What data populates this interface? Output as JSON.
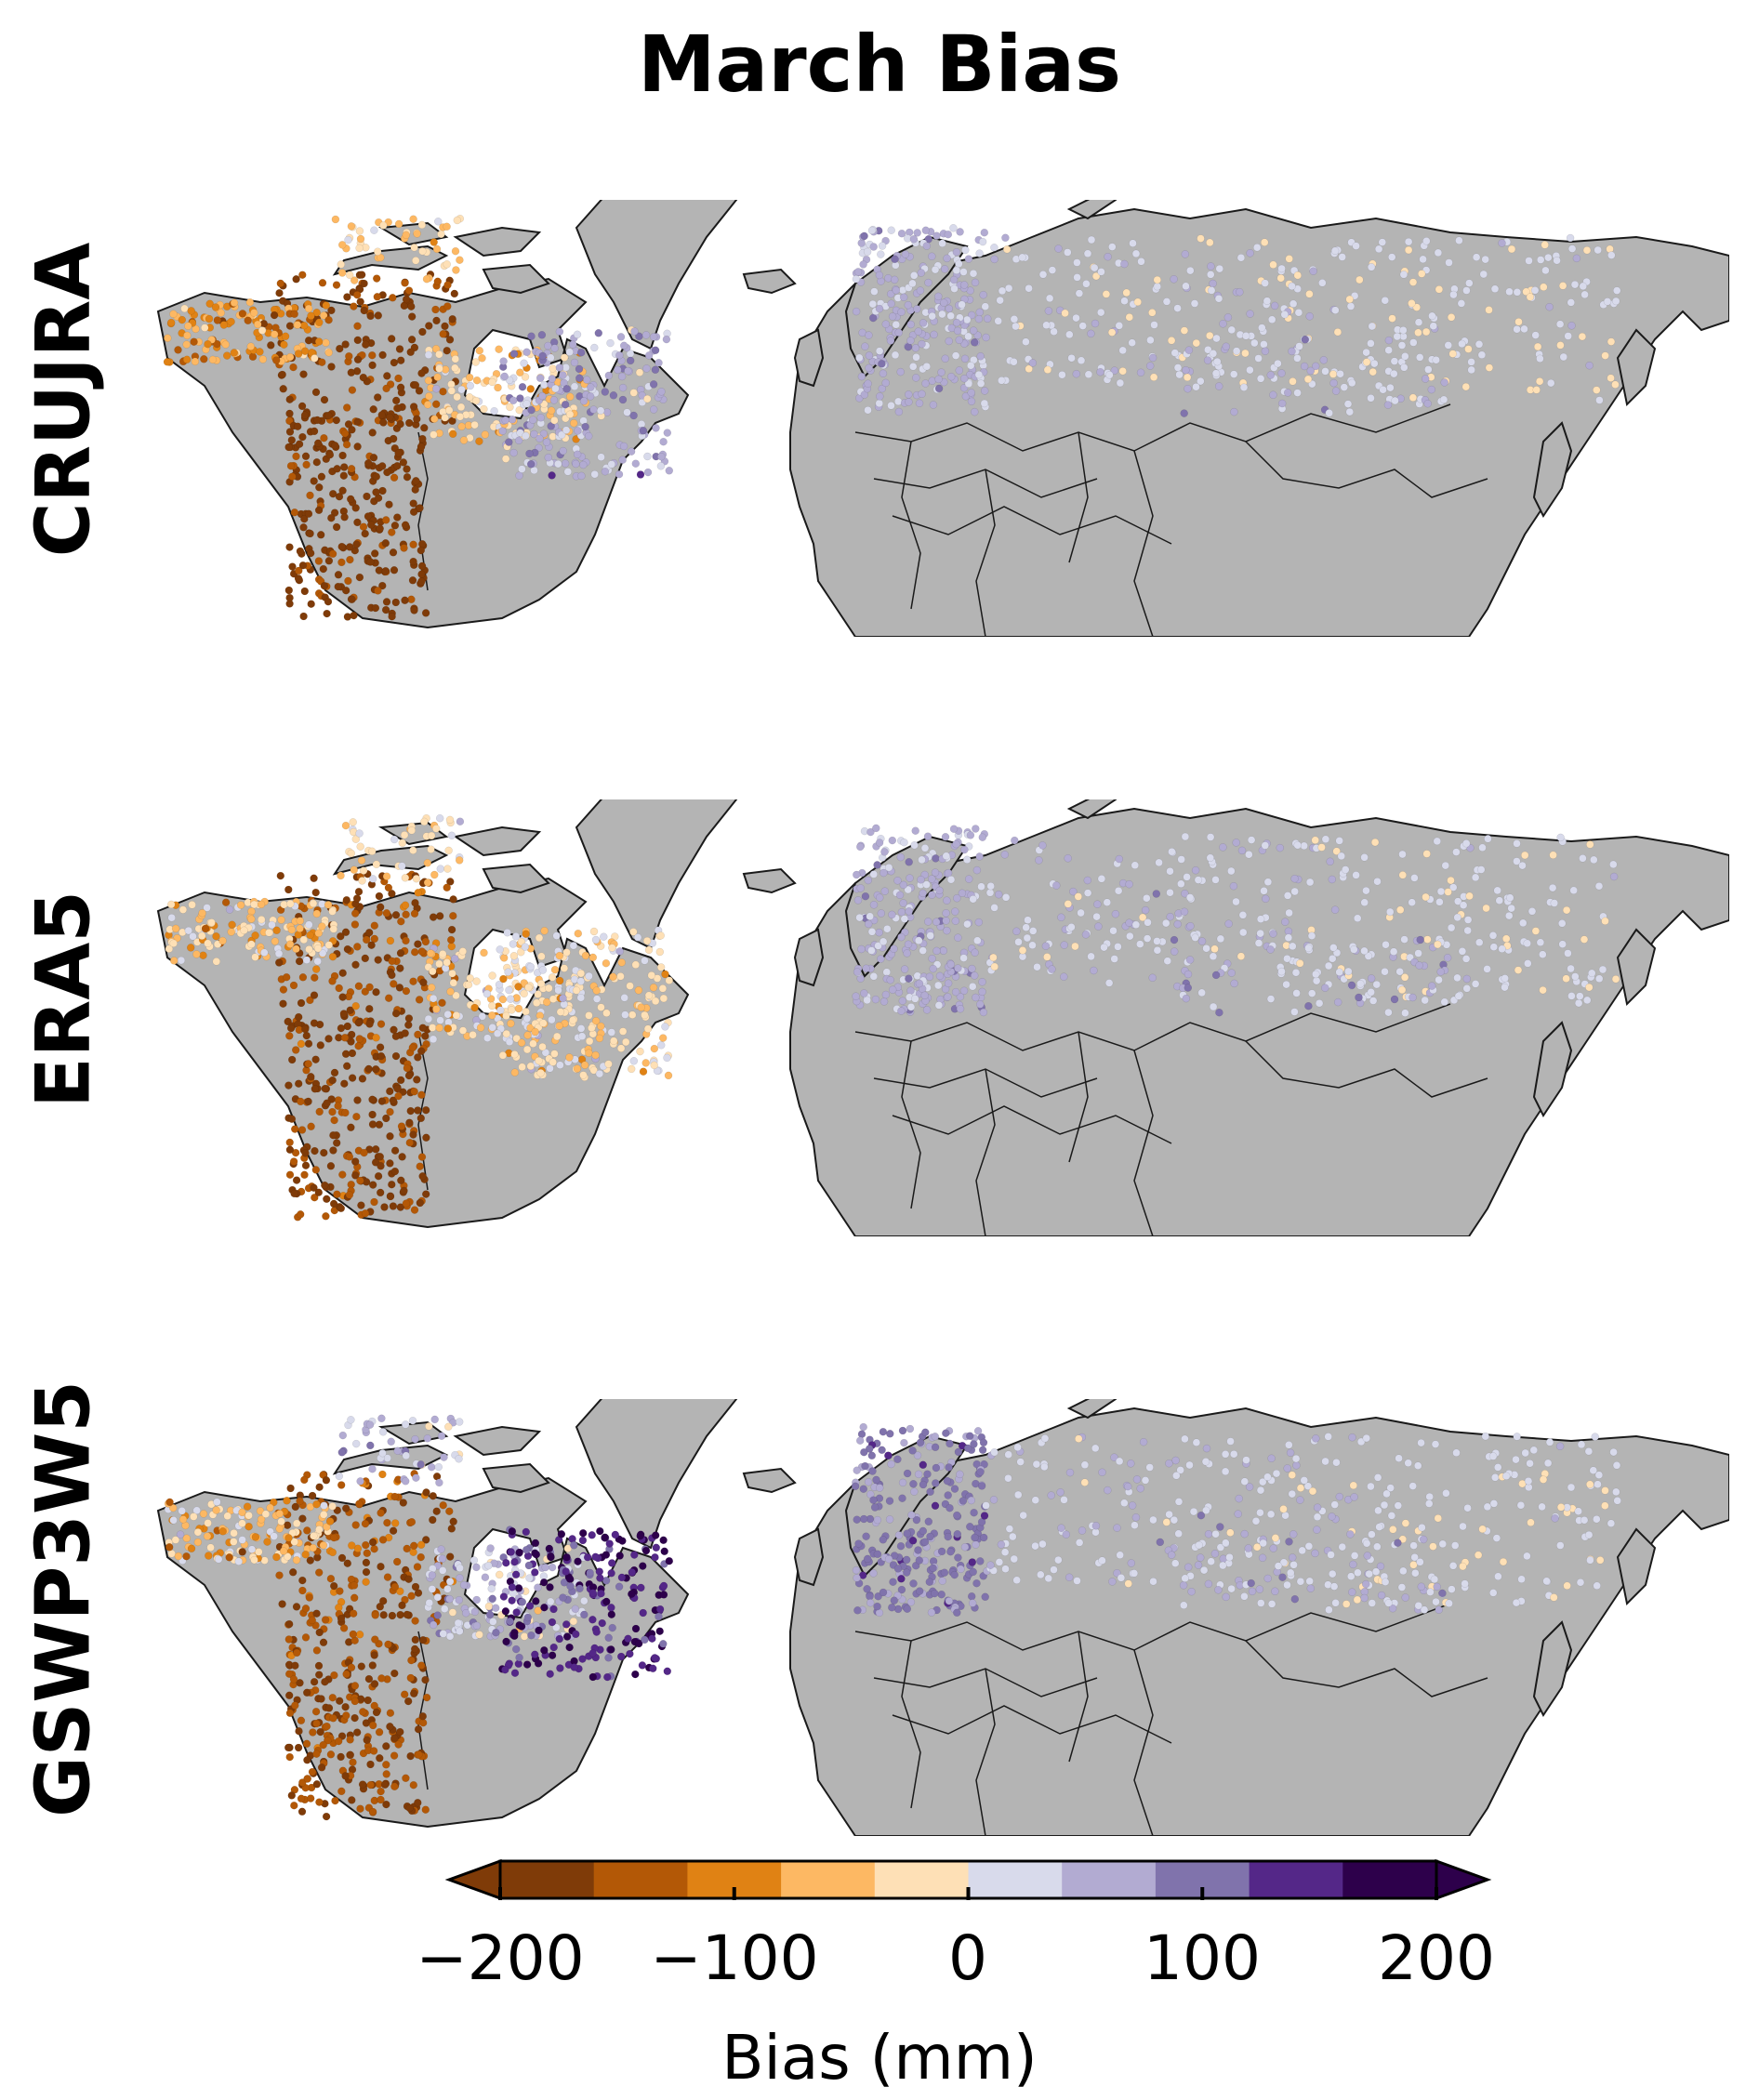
{
  "title": "March Bias",
  "panels": [
    {
      "label": "CRUJRA",
      "scheme": "crujra"
    },
    {
      "label": "ERA5",
      "scheme": "era5"
    },
    {
      "label": "GSWP3W5",
      "scheme": "gswp"
    }
  ],
  "colorbar": {
    "label": "Bias (mm)",
    "min": -200,
    "max": 200,
    "extend": "both",
    "tick_values": [
      -200,
      -100,
      0,
      100,
      200
    ],
    "tick_labels": [
      "−200",
      "−100",
      "0",
      "100",
      "200"
    ],
    "bins": [
      {
        "from": -200,
        "to": -160,
        "color": "#7f3b08"
      },
      {
        "from": -160,
        "to": -120,
        "color": "#b35806"
      },
      {
        "from": -120,
        "to": -80,
        "color": "#e08214"
      },
      {
        "from": -80,
        "to": -40,
        "color": "#fdb863"
      },
      {
        "from": -40,
        "to": 0,
        "color": "#fee0b6"
      },
      {
        "from": 0,
        "to": 40,
        "color": "#d8daeb"
      },
      {
        "from": 40,
        "to": 80,
        "color": "#b2abd2"
      },
      {
        "from": 80,
        "to": 120,
        "color": "#8073ac"
      },
      {
        "from": 120,
        "to": 160,
        "color": "#542788"
      },
      {
        "from": 160,
        "to": 200,
        "color": "#2d004b"
      }
    ],
    "under_color": "#7f3b08",
    "over_color": "#2d004b"
  },
  "land_color": "#b4b4b4",
  "border_color": "#1a1a1a"
}
